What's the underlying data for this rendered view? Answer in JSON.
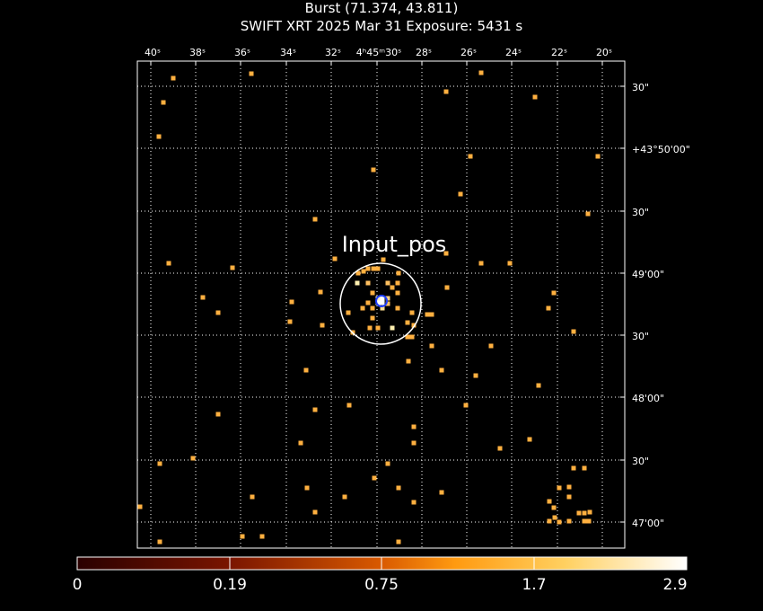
{
  "header": {
    "title": "Burst (71.374, 43.811)",
    "subtitle": "SWIFT XRT   2025 Mar 31    Exposure: 5431 s"
  },
  "ra_ticks": [
    "40ˢ",
    "38ˢ",
    "36ˢ",
    "34ˢ",
    "32ˢ",
    "4ʰ45ᵐ30ˢ",
    "28ˢ",
    "26ˢ",
    "24ˢ",
    "22ˢ",
    "20ˢ"
  ],
  "dec_ticks": [
    "30\"",
    "+43°50'00\"",
    "30\"",
    "49'00\"",
    "30\"",
    "48'00\"",
    "30\"",
    "47'00\""
  ],
  "region_label": "Input_pos",
  "colorbar": {
    "labels": [
      "0",
      "0.19",
      "0.75",
      "1.7",
      "2.9"
    ],
    "colors": [
      "#2a0000",
      "#7a1500",
      "#d95a00",
      "#ff9a10",
      "#ffd060",
      "#ffffff"
    ]
  }
}
